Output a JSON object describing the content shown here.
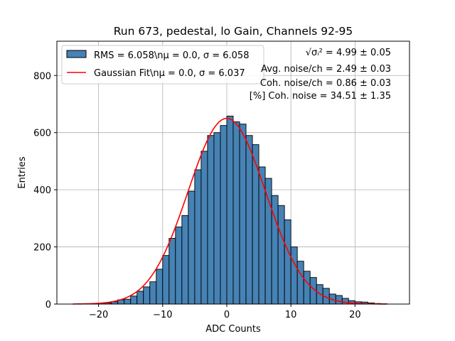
{
  "chart_data": {
    "type": "bar",
    "title": "Run 673, pedestal, lo Gain, Channels 92-95",
    "xlabel": "ADC Counts",
    "ylabel": "Entries",
    "xlim": [
      -26.5,
      28.5
    ],
    "ylim": [
      0,
      920
    ],
    "xticks": [
      -20,
      -10,
      0,
      10,
      20
    ],
    "yticks": [
      0,
      200,
      400,
      600,
      800
    ],
    "grid": true,
    "legend_position": "upper-left",
    "bar_color": "#4682b4",
    "fit_color": "#ff0000",
    "bin_edges_start": -22,
    "bin_width": 1,
    "values": [
      0,
      2,
      3,
      4,
      8,
      15,
      17,
      28,
      45,
      60,
      78,
      122,
      170,
      230,
      270,
      310,
      395,
      470,
      535,
      590,
      600,
      625,
      658,
      638,
      630,
      590,
      558,
      480,
      440,
      380,
      345,
      295,
      200,
      150,
      115,
      93,
      68,
      55,
      35,
      30,
      20,
      12,
      8,
      7,
      4,
      2,
      1
    ],
    "fit": {
      "mu": 0.0,
      "sigma": 6.037,
      "amplitude": 650,
      "x_range": [
        -24,
        25
      ]
    },
    "legend": [
      {
        "type": "patch",
        "label": "RMS = 6.058\\nμ = 0.0, σ = 6.058"
      },
      {
        "type": "line",
        "label": "Gaussian Fit\\nμ = 0.0, σ = 6.037"
      }
    ],
    "annotations": {
      "total_noise_symbol": "√σᵢ²",
      "total_noise_value": " = 4.99 ± 0.05",
      "avg_noise": "Avg. noise/ch = 2.49 ± 0.03",
      "coh_noise": "Coh. noise/ch = 0.86 ± 0.03",
      "pct_coh_noise": "[%] Coh. noise = 34.51 ± 1.35"
    }
  }
}
